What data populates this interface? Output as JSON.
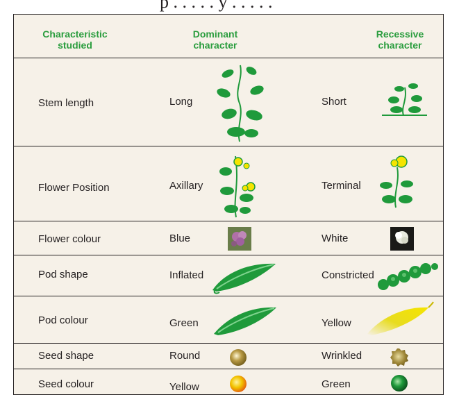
{
  "header": {
    "col1": [
      "Characteristic",
      "studied"
    ],
    "col2": [
      "Dominant",
      "character"
    ],
    "col3": [
      "Recessive",
      "character"
    ]
  },
  "rows": [
    {
      "trait": "Stem length",
      "dominant": "Long",
      "recessive": "Short",
      "dominant_icon": "tall-plant-icon",
      "recessive_icon": "short-plant-icon"
    },
    {
      "trait": "Flower Position",
      "dominant": "Axillary",
      "recessive": "Terminal",
      "dominant_icon": "axillary-flower-plant-icon",
      "recessive_icon": "terminal-flower-plant-icon"
    },
    {
      "trait": "Flower colour",
      "dominant": "Blue",
      "recessive": "White",
      "dominant_icon": "purple-flower-photo",
      "recessive_icon": "white-flower-photo"
    },
    {
      "trait": "Pod shape",
      "dominant": "Inflated",
      "recessive": "Constricted",
      "dominant_icon": "inflated-pod-icon",
      "recessive_icon": "constricted-pod-icon"
    },
    {
      "trait": "Pod colour",
      "dominant": "Green",
      "recessive": "Yellow",
      "dominant_icon": "green-pod-icon",
      "recessive_icon": "yellow-pod-icon"
    },
    {
      "trait": "Seed shape",
      "dominant": "Round",
      "recessive": "Wrinkled",
      "dominant_icon": "round-seed-icon",
      "recessive_icon": "wrinkled-seed-icon"
    },
    {
      "trait": "Seed colour",
      "dominant": "Yellow",
      "recessive": "Green",
      "dominant_icon": "yellow-seed-icon",
      "recessive_icon": "green-seed-icon"
    }
  ],
  "colors": {
    "header_text": "#2a9d3e",
    "plant_green": "#1f9a3b",
    "table_bg": "#f6f1e8",
    "border": "#231f20"
  }
}
